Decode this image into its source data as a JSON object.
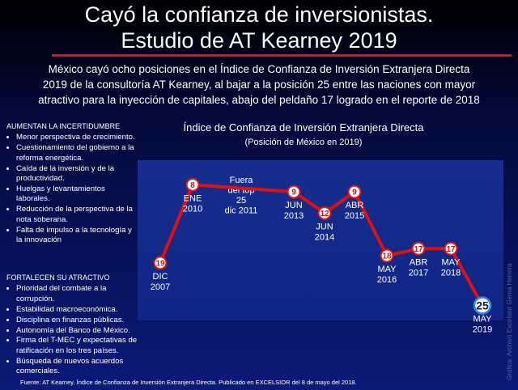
{
  "header": {
    "title_lines": [
      "Cayó la confianza de inversionistas.",
      "Estudio de AT Kearney 2019"
    ],
    "intro_lines": [
      "México cayó ocho posiciones en el Índice de Confianza de Inversión Extranjera Directa",
      "2019 de la consultoría AT Kearney, al bajar a la posición 25 entre las naciones con mayor",
      "atractivo para la inyección de capitales, abajo del peldaño 17 logrado en el reporte de 2018"
    ]
  },
  "sidebar": [
    {
      "heading": "AUMENTAN LA INCERTIDUMBRE",
      "items": [
        "Menor perspectiva de crecimiento.",
        "Cuestionamiento del gobierno a la reforma energética.",
        "Caída de la inversión y de la productividad.",
        "Huelgas y levantamientos laborales.",
        "Reducción de la perspectiva de la nota soberana.",
        "Falta de impulso a la tecnología y la innovación"
      ]
    },
    {
      "heading": "FORTALECEN SU ATRACTIVO",
      "items": [
        "Prioridad del combate a la corrupción.",
        "Estabilidad macroeconómica.",
        "Disciplina en finanzas públicas.",
        "Autonomía del Banco de México.",
        "Firma del T-MEC y expectativas de ratificación en los tres países.",
        "Búsqueda de nuevos acuerdos comerciales."
      ]
    }
  ],
  "chart_data": {
    "type": "line",
    "title": "Índice de Confianza de Inversión Extranjera Directa",
    "subtitle": "(Posición de México en 2019)",
    "categories": [
      "DIC 2007",
      "ENE 2010",
      "JUN 2013",
      "JUN 2014",
      "ABR 2015",
      "MAY 2016",
      "ABR 2017",
      "MAY 2018",
      "MAY 2019"
    ],
    "values": [
      19,
      8,
      9,
      12,
      9,
      18,
      17,
      17,
      25
    ],
    "color": "#e01010",
    "ylim": [
      27,
      5
    ],
    "annotation": [
      "Fuera",
      "del top",
      "25",
      "dic 2011"
    ]
  },
  "footer": {
    "source": "Fuente: AT Kearney. Índice de Confianza de Inversión Extranjera Directa. Publicado en EXCELSIOR del 8 de mayo del 2018.",
    "credit": "Gráfica: Archivo Excélsior Gema Herrera"
  }
}
